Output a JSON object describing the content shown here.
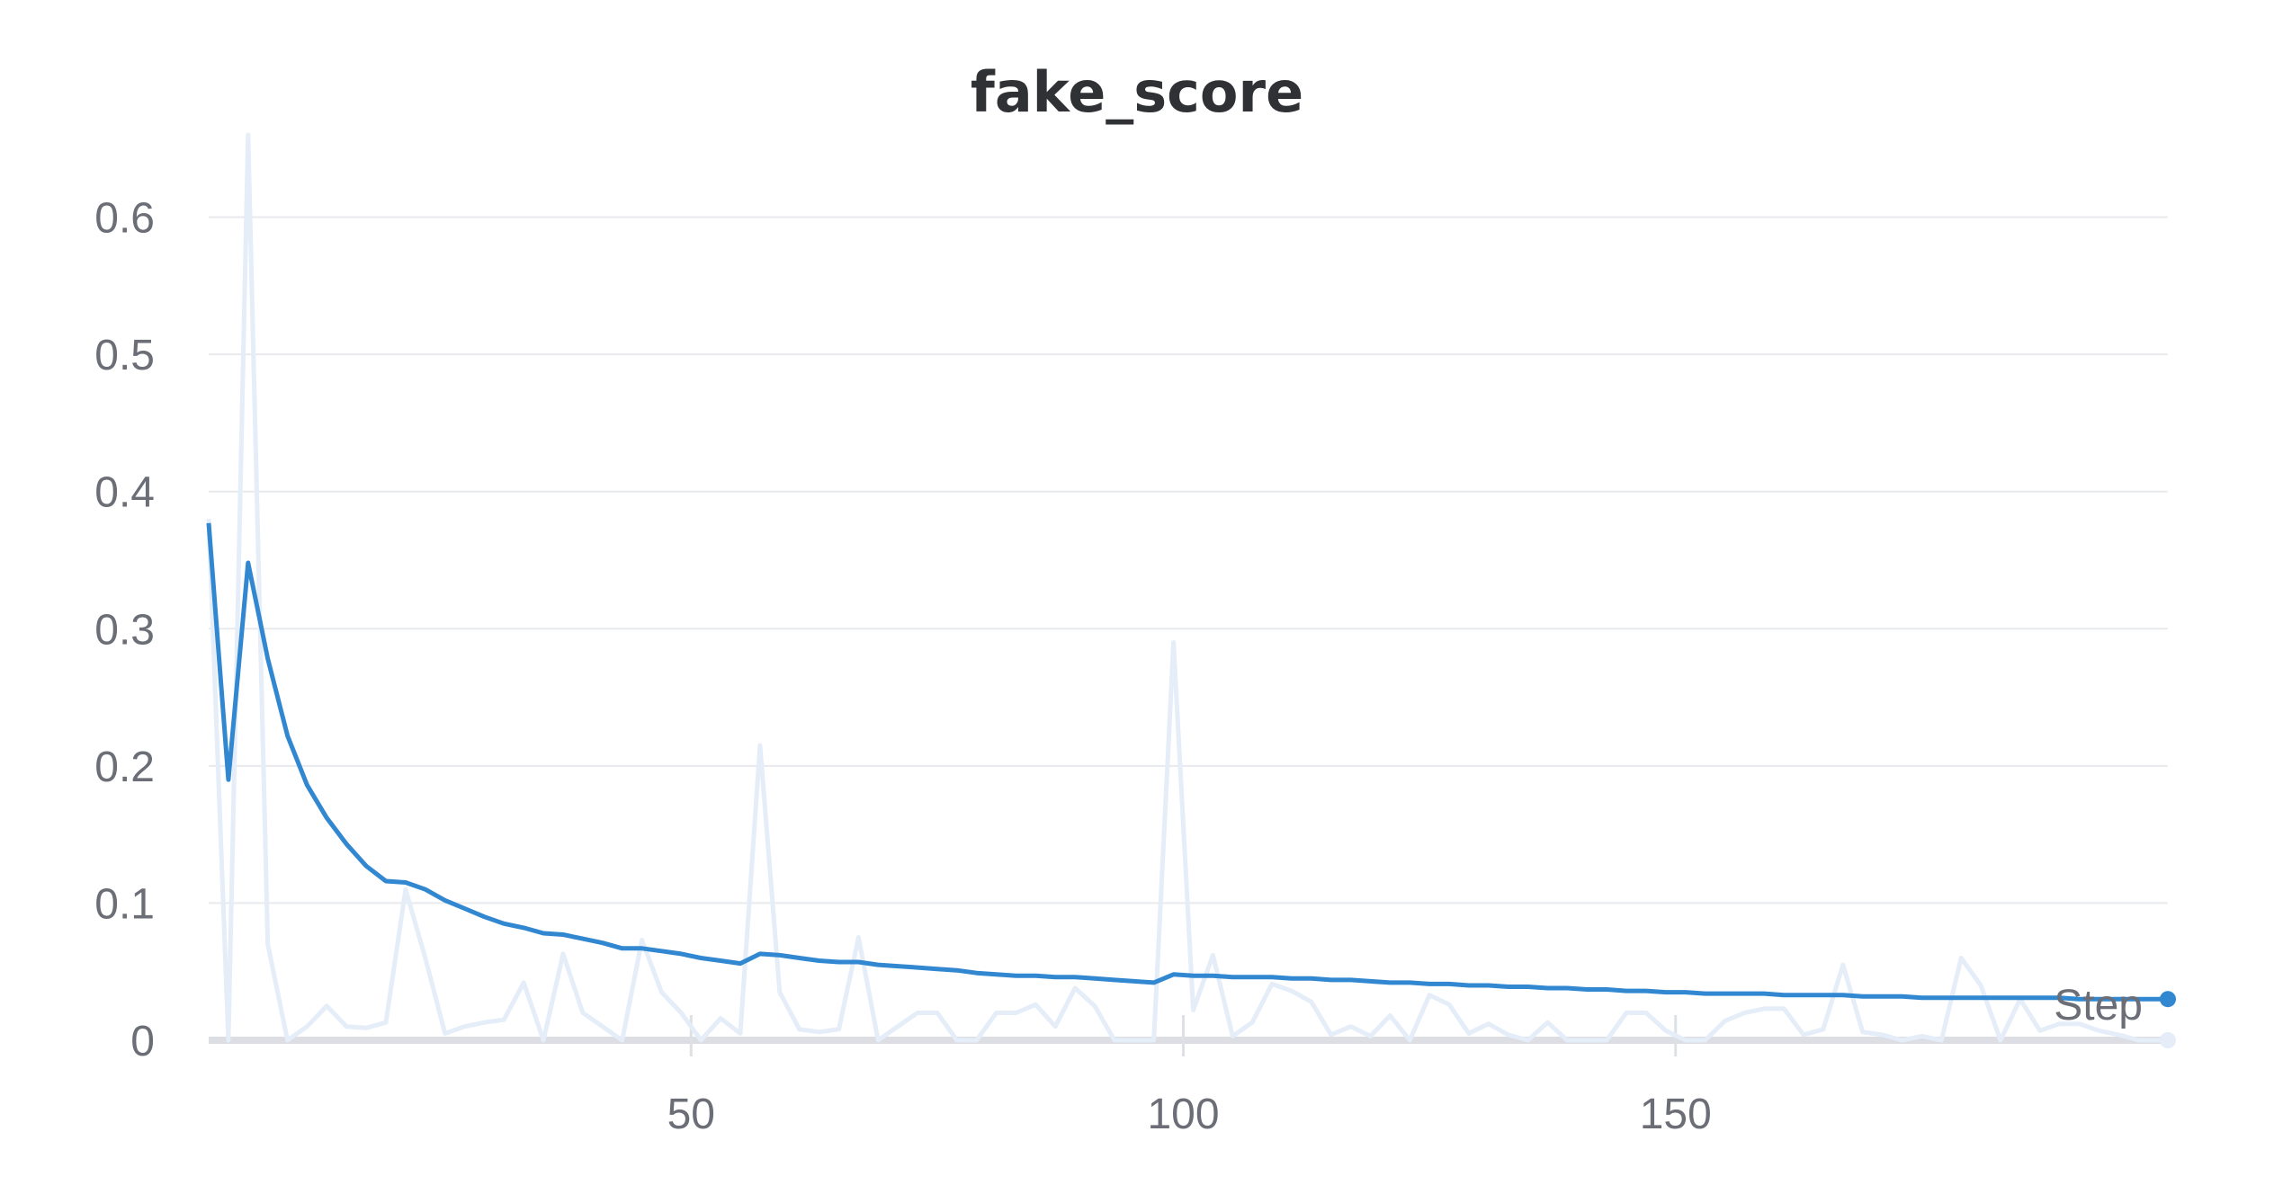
{
  "chart_data": {
    "type": "line",
    "title": "fake_score",
    "xlabel": "Step",
    "ylabel": "",
    "xlim": [
      1,
      200
    ],
    "ylim": [
      0,
      0.66
    ],
    "grid": true,
    "x_ticks": [
      50,
      100,
      150
    ],
    "x_tick_labels": [
      "50",
      "100",
      "150"
    ],
    "y_ticks": [
      0,
      0.1,
      0.2,
      0.3,
      0.4,
      0.5,
      0.6
    ],
    "y_tick_labels": [
      "0",
      "0.1",
      "0.2",
      "0.3",
      "0.4",
      "0.5",
      "0.6"
    ],
    "colors": {
      "smoothed": "#3287d1",
      "raw": "#e4edf8"
    },
    "series": [
      {
        "role": "raw",
        "points": [
          [
            1,
            0.38
          ],
          [
            3,
            0.0
          ],
          [
            5,
            0.66
          ],
          [
            7,
            0.07
          ],
          [
            9,
            0.0
          ],
          [
            11,
            0.01
          ],
          [
            13,
            0.025
          ],
          [
            15,
            0.01
          ],
          [
            17,
            0.009
          ],
          [
            19,
            0.013
          ],
          [
            21,
            0.11
          ],
          [
            23,
            0.06
          ],
          [
            25,
            0.005
          ],
          [
            27,
            0.01
          ],
          [
            29,
            0.013
          ],
          [
            31,
            0.015
          ],
          [
            33,
            0.042
          ],
          [
            35,
            0.0
          ],
          [
            37,
            0.063
          ],
          [
            39,
            0.02
          ],
          [
            41,
            0.01
          ],
          [
            43,
            0.0
          ],
          [
            45,
            0.073
          ],
          [
            47,
            0.035
          ],
          [
            49,
            0.02
          ],
          [
            51,
            0.0
          ],
          [
            53,
            0.016
          ],
          [
            55,
            0.005
          ],
          [
            57,
            0.215
          ],
          [
            59,
            0.035
          ],
          [
            61,
            0.008
          ],
          [
            63,
            0.006
          ],
          [
            65,
            0.008
          ],
          [
            67,
            0.075
          ],
          [
            69,
            0.0
          ],
          [
            71,
            0.01
          ],
          [
            73,
            0.02
          ],
          [
            75,
            0.02
          ],
          [
            77,
            0.0
          ],
          [
            79,
            0.0
          ],
          [
            81,
            0.02
          ],
          [
            83,
            0.02
          ],
          [
            85,
            0.026
          ],
          [
            87,
            0.01
          ],
          [
            89,
            0.038
          ],
          [
            91,
            0.025
          ],
          [
            93,
            0.0
          ],
          [
            95,
            0.0
          ],
          [
            97,
            0.0
          ],
          [
            99,
            0.29
          ],
          [
            101,
            0.022
          ],
          [
            103,
            0.062
          ],
          [
            105,
            0.003
          ],
          [
            107,
            0.013
          ],
          [
            109,
            0.041
          ],
          [
            111,
            0.036
          ],
          [
            113,
            0.028
          ],
          [
            115,
            0.004
          ],
          [
            117,
            0.01
          ],
          [
            119,
            0.003
          ],
          [
            121,
            0.018
          ],
          [
            123,
            0.0
          ],
          [
            125,
            0.033
          ],
          [
            127,
            0.026
          ],
          [
            129,
            0.005
          ],
          [
            131,
            0.012
          ],
          [
            133,
            0.004
          ],
          [
            135,
            0.0
          ],
          [
            137,
            0.013
          ],
          [
            139,
            0.0
          ],
          [
            141,
            0.0
          ],
          [
            143,
            0.0
          ],
          [
            145,
            0.02
          ],
          [
            147,
            0.02
          ],
          [
            149,
            0.007
          ],
          [
            151,
            0.0
          ],
          [
            153,
            0.0
          ],
          [
            155,
            0.014
          ],
          [
            157,
            0.02
          ],
          [
            159,
            0.023
          ],
          [
            161,
            0.023
          ],
          [
            163,
            0.004
          ],
          [
            165,
            0.008
          ],
          [
            167,
            0.055
          ],
          [
            169,
            0.006
          ],
          [
            171,
            0.004
          ],
          [
            173,
            0.0
          ],
          [
            175,
            0.003
          ],
          [
            177,
            0.0
          ],
          [
            179,
            0.06
          ],
          [
            181,
            0.04
          ],
          [
            183,
            0.0
          ],
          [
            185,
            0.03
          ],
          [
            187,
            0.007
          ],
          [
            189,
            0.012
          ],
          [
            191,
            0.012
          ],
          [
            193,
            0.007
          ],
          [
            195,
            0.004
          ],
          [
            197,
            0.0
          ],
          [
            200,
            0.0
          ]
        ]
      },
      {
        "role": "smoothed",
        "points": [
          [
            1,
            0.377
          ],
          [
            3,
            0.19
          ],
          [
            5,
            0.348
          ],
          [
            7,
            0.278
          ],
          [
            9,
            0.222
          ],
          [
            11,
            0.186
          ],
          [
            13,
            0.162
          ],
          [
            15,
            0.143
          ],
          [
            17,
            0.127
          ],
          [
            19,
            0.116
          ],
          [
            21,
            0.115
          ],
          [
            23,
            0.11
          ],
          [
            25,
            0.102
          ],
          [
            27,
            0.096
          ],
          [
            29,
            0.09
          ],
          [
            31,
            0.085
          ],
          [
            33,
            0.082
          ],
          [
            35,
            0.078
          ],
          [
            37,
            0.077
          ],
          [
            39,
            0.074
          ],
          [
            41,
            0.071
          ],
          [
            43,
            0.067
          ],
          [
            45,
            0.067
          ],
          [
            47,
            0.065
          ],
          [
            49,
            0.063
          ],
          [
            51,
            0.06
          ],
          [
            53,
            0.058
          ],
          [
            55,
            0.056
          ],
          [
            57,
            0.063
          ],
          [
            59,
            0.062
          ],
          [
            61,
            0.06
          ],
          [
            63,
            0.058
          ],
          [
            65,
            0.057
          ],
          [
            67,
            0.057
          ],
          [
            69,
            0.055
          ],
          [
            71,
            0.054
          ],
          [
            73,
            0.053
          ],
          [
            75,
            0.052
          ],
          [
            77,
            0.051
          ],
          [
            79,
            0.049
          ],
          [
            81,
            0.048
          ],
          [
            83,
            0.047
          ],
          [
            85,
            0.047
          ],
          [
            87,
            0.046
          ],
          [
            89,
            0.046
          ],
          [
            91,
            0.045
          ],
          [
            93,
            0.044
          ],
          [
            95,
            0.043
          ],
          [
            97,
            0.042
          ],
          [
            99,
            0.048
          ],
          [
            101,
            0.047
          ],
          [
            103,
            0.047
          ],
          [
            105,
            0.046
          ],
          [
            107,
            0.046
          ],
          [
            109,
            0.046
          ],
          [
            111,
            0.045
          ],
          [
            113,
            0.045
          ],
          [
            115,
            0.044
          ],
          [
            117,
            0.044
          ],
          [
            119,
            0.043
          ],
          [
            121,
            0.042
          ],
          [
            123,
            0.042
          ],
          [
            125,
            0.041
          ],
          [
            127,
            0.041
          ],
          [
            129,
            0.04
          ],
          [
            131,
            0.04
          ],
          [
            133,
            0.039
          ],
          [
            135,
            0.039
          ],
          [
            137,
            0.038
          ],
          [
            139,
            0.038
          ],
          [
            141,
            0.037
          ],
          [
            143,
            0.037
          ],
          [
            145,
            0.036
          ],
          [
            147,
            0.036
          ],
          [
            149,
            0.035
          ],
          [
            151,
            0.035
          ],
          [
            153,
            0.034
          ],
          [
            155,
            0.034
          ],
          [
            157,
            0.034
          ],
          [
            159,
            0.034
          ],
          [
            161,
            0.033
          ],
          [
            163,
            0.033
          ],
          [
            165,
            0.033
          ],
          [
            167,
            0.033
          ],
          [
            169,
            0.032
          ],
          [
            171,
            0.032
          ],
          [
            173,
            0.032
          ],
          [
            175,
            0.031
          ],
          [
            177,
            0.031
          ],
          [
            179,
            0.031
          ],
          [
            181,
            0.031
          ],
          [
            183,
            0.031
          ],
          [
            185,
            0.031
          ],
          [
            187,
            0.031
          ],
          [
            189,
            0.031
          ],
          [
            191,
            0.03
          ],
          [
            193,
            0.03
          ],
          [
            195,
            0.03
          ],
          [
            197,
            0.03
          ],
          [
            200,
            0.03
          ]
        ]
      }
    ]
  }
}
